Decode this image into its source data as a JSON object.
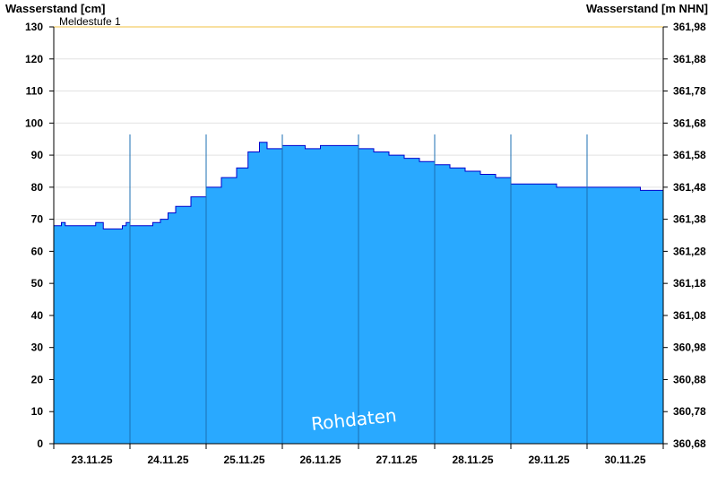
{
  "chart_data": {
    "type": "area",
    "left_axis_label": "Wasserstand [cm]",
    "right_axis_label": "Wasserstand [m NHN]",
    "ylim": [
      0,
      130
    ],
    "yticks_left": [
      "0",
      "10",
      "20",
      "30",
      "40",
      "50",
      "60",
      "70",
      "80",
      "90",
      "100",
      "110",
      "120",
      "130"
    ],
    "yticks_right": [
      "360,68",
      "360,78",
      "360,88",
      "360,98",
      "361,08",
      "361,18",
      "361,28",
      "361,38",
      "361,48",
      "361,58",
      "361,68",
      "361,78",
      "361,88",
      "361,98"
    ],
    "x_labels": [
      "23.11.25",
      "24.11.25",
      "25.11.25",
      "26.11.25",
      "27.11.25",
      "28.11.25",
      "29.11.25",
      "30.11.25"
    ],
    "threshold": {
      "label": "Meldestufe 1",
      "value": 130,
      "color": "#f0c040"
    },
    "watermark": "Rohdaten",
    "grid": true,
    "series": [
      {
        "fill_color": "#29a9ff",
        "line_color": "#0000cc",
        "x_days": [
          0,
          0.1,
          0.15,
          0.3,
          0.5,
          0.55,
          0.65,
          0.75,
          0.9,
          0.95,
          1.0,
          1.25,
          1.3,
          1.4,
          1.5,
          1.6,
          1.8,
          2.0,
          2.2,
          2.4,
          2.55,
          2.7,
          2.8,
          2.9,
          3.0,
          3.1,
          3.3,
          3.5,
          3.7,
          3.9,
          4.0,
          4.2,
          4.4,
          4.6,
          4.8,
          5.0,
          5.2,
          5.4,
          5.6,
          5.8,
          6.0,
          6.3,
          6.6,
          6.9,
          7.2,
          7.5,
          7.7,
          8.0
        ],
        "values": [
          68,
          69,
          68,
          68,
          68,
          69,
          67,
          67,
          68,
          69,
          68,
          68,
          69,
          70,
          72,
          74,
          77,
          80,
          83,
          86,
          91,
          94,
          92,
          92,
          93,
          93,
          92,
          93,
          93,
          93,
          92,
          91,
          90,
          89,
          88,
          87,
          86,
          85,
          84,
          83,
          81,
          81,
          80,
          80,
          80,
          80,
          79,
          78
        ]
      }
    ]
  }
}
